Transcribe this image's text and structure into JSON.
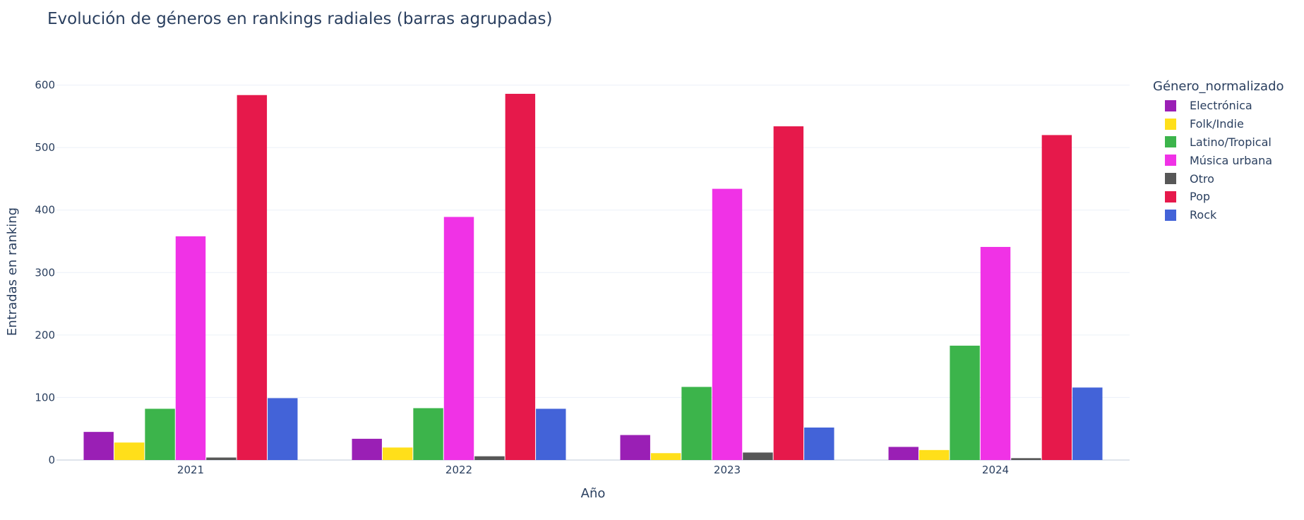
{
  "chart_data": {
    "type": "bar",
    "barmode": "group",
    "title": "Evolución de géneros en rankings radiales (barras agrupadas)",
    "xlabel": "Año",
    "ylabel": "Entradas en ranking",
    "categories": [
      "2021",
      "2022",
      "2023",
      "2024"
    ],
    "ylim": [
      0,
      630
    ],
    "yticks": [
      0,
      100,
      200,
      300,
      400,
      500,
      600
    ],
    "grid": true,
    "legend_title": "Género_normalizado",
    "legend_position": "right",
    "series": [
      {
        "name": "Electrónica",
        "color": "#9a1fb5",
        "values": [
          45,
          34,
          40,
          21
        ]
      },
      {
        "name": "Folk/Indie",
        "color": "#ffdf1a",
        "values": [
          28,
          20,
          11,
          16
        ]
      },
      {
        "name": "Latino/Tropical",
        "color": "#3cb44b",
        "values": [
          82,
          83,
          117,
          183
        ]
      },
      {
        "name": "Música urbana",
        "color": "#f032e6",
        "values": [
          358,
          389,
          434,
          341
        ]
      },
      {
        "name": "Otro",
        "color": "#575757",
        "values": [
          4,
          6,
          12,
          3
        ]
      },
      {
        "name": "Pop",
        "color": "#e6194b",
        "values": [
          584,
          586,
          534,
          520
        ]
      },
      {
        "name": "Rock",
        "color": "#4363d8",
        "values": [
          99,
          82,
          52,
          116
        ]
      }
    ]
  }
}
